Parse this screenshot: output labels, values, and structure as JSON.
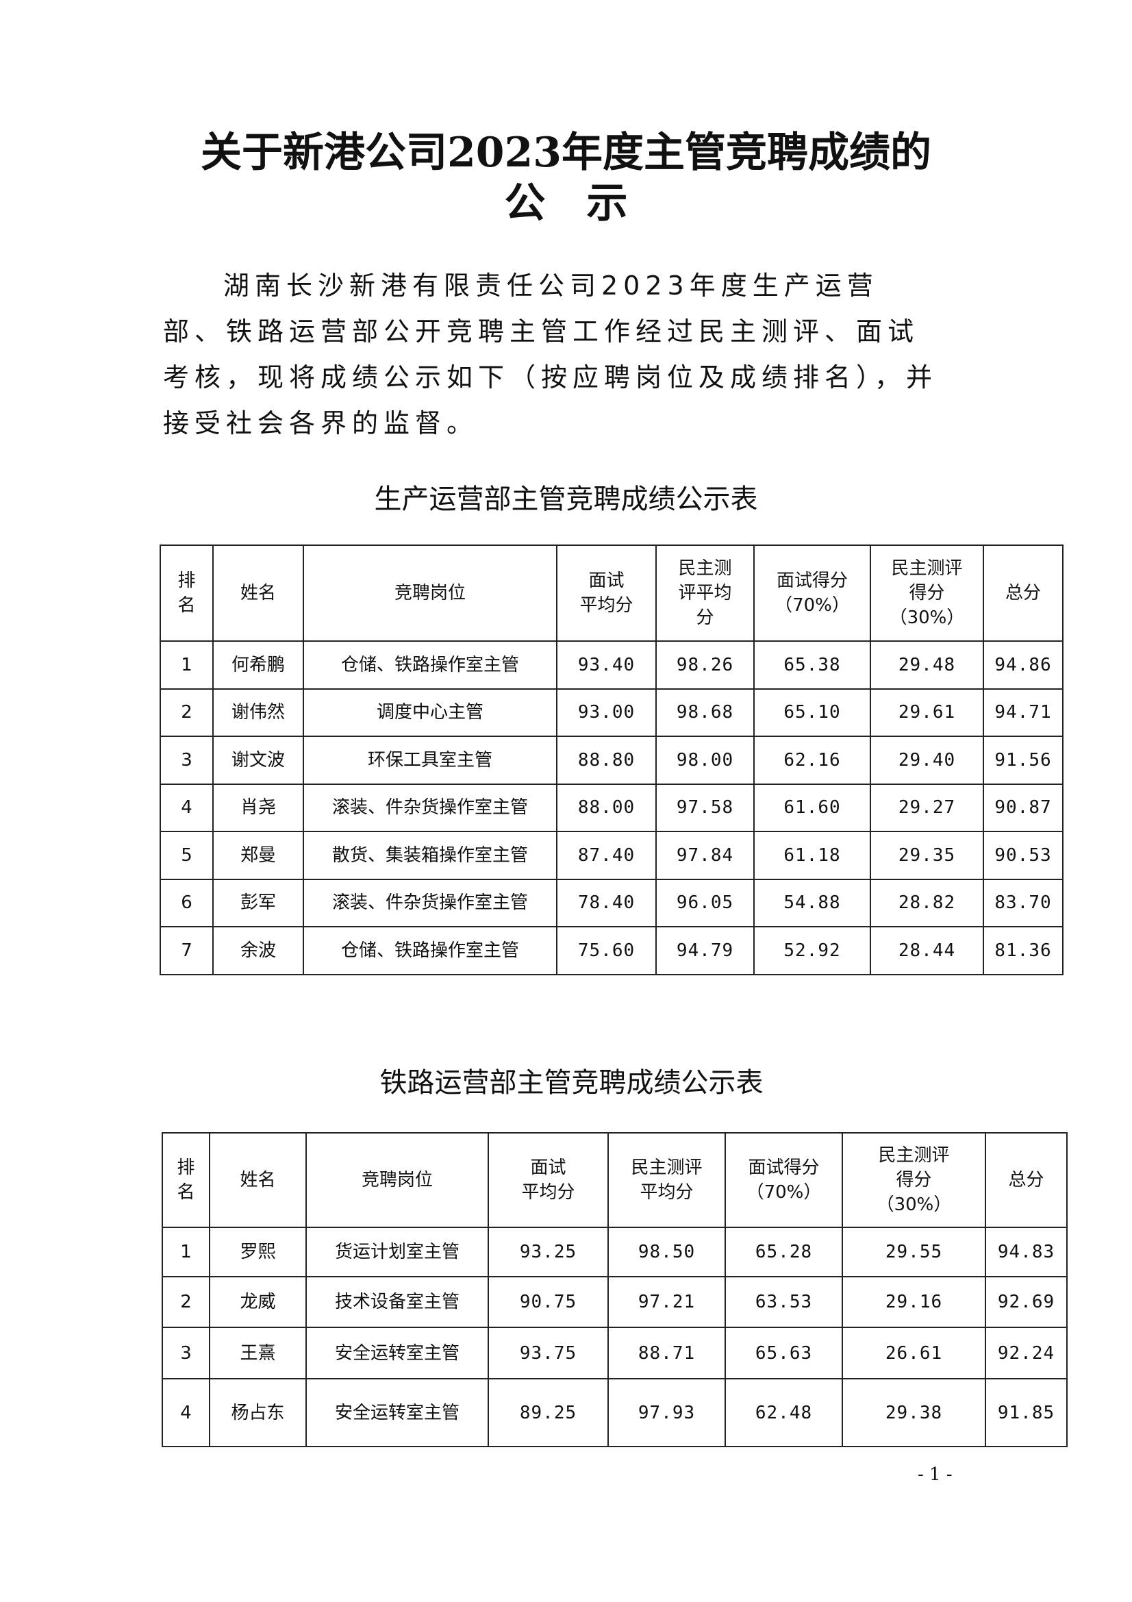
{
  "document": {
    "title_line1": "关于新港公司2023年度主管竞聘成绩的",
    "title_line2": "公示",
    "paragraph": "湖南长沙新港有限责任公司2023年度生产运营部、铁路运营部公开竞聘主管工作经过民主测评、面试考核，现将成绩公示如下（按应聘岗位及成绩排名），并接受社会各界的监督。",
    "page_number": "- 1 -"
  },
  "table1": {
    "caption": "生产运营部主管竞聘成绩公示表",
    "headers": [
      "排\n名",
      "姓名",
      "竞聘岗位",
      "面试\n平均分",
      "民主测\n评平均\n分",
      "面试得分\n（70%）",
      "民主测评\n得分\n（30%）",
      "总分"
    ],
    "rows": [
      [
        "1",
        "何希鹏",
        "仓储、铁路操作室主管",
        "93.40",
        "98.26",
        "65.38",
        "29.48",
        "94.86"
      ],
      [
        "2",
        "谢伟然",
        "调度中心主管",
        "93.00",
        "98.68",
        "65.10",
        "29.61",
        "94.71"
      ],
      [
        "3",
        "谢文波",
        "环保工具室主管",
        "88.80",
        "98.00",
        "62.16",
        "29.40",
        "91.56"
      ],
      [
        "4",
        "肖尧",
        "滚装、件杂货操作室主管",
        "88.00",
        "97.58",
        "61.60",
        "29.27",
        "90.87"
      ],
      [
        "5",
        "郑曼",
        "散货、集装箱操作室主管",
        "87.40",
        "97.84",
        "61.18",
        "29.35",
        "90.53"
      ],
      [
        "6",
        "彭军",
        "滚装、件杂货操作室主管",
        "78.40",
        "96.05",
        "54.88",
        "28.82",
        "83.70"
      ],
      [
        "7",
        "余波",
        "仓储、铁路操作室主管",
        "75.60",
        "94.79",
        "52.92",
        "28.44",
        "81.36"
      ]
    ]
  },
  "table2": {
    "caption": "铁路运营部主管竞聘成绩公示表",
    "headers": [
      "排\n名",
      "姓名",
      "竞聘岗位",
      "面试\n平均分",
      "民主测评\n平均分",
      "面试得分\n（70%）",
      "民主测评\n得分\n（30%）",
      "总分"
    ],
    "rows": [
      [
        "1",
        "罗熙",
        "货运计划室主管",
        "93.25",
        "98.50",
        "65.28",
        "29.55",
        "94.83"
      ],
      [
        "2",
        "龙威",
        "技术设备室主管",
        "90.75",
        "97.21",
        "63.53",
        "29.16",
        "92.69"
      ],
      [
        "3",
        "王熹",
        "安全运转室主管",
        "93.75",
        "88.71",
        "65.63",
        "26.61",
        "92.24"
      ],
      [
        "4",
        "杨占东",
        "安全运转室主管",
        "89.25",
        "97.93",
        "62.48",
        "29.38",
        "91.85"
      ]
    ]
  }
}
